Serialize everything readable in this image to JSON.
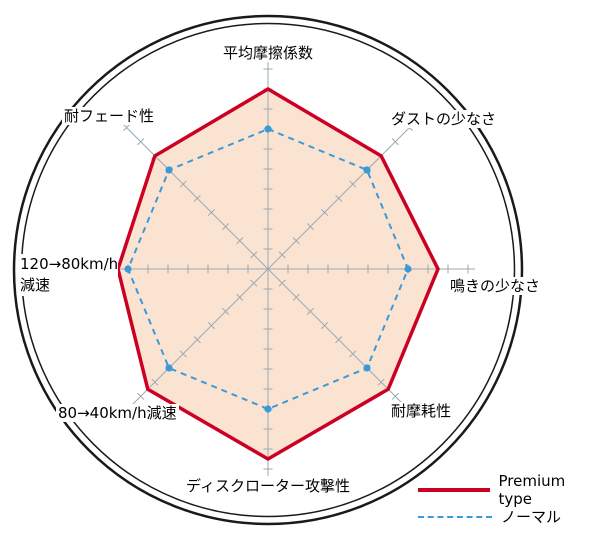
{
  "chart_data": {
    "type": "radar",
    "title": "",
    "axes": [
      {
        "label": "平均摩擦係数"
      },
      {
        "label": "ダストの少なさ"
      },
      {
        "label": "鳴きの少なさ"
      },
      {
        "label": "耐摩耗性"
      },
      {
        "label": "ディスクローター攻撃性"
      },
      {
        "label": "80→40km/h減速"
      },
      {
        "label": "120→80km/h減速"
      },
      {
        "label": "耐フェード性"
      }
    ],
    "scale": {
      "min": 0,
      "max": 10,
      "ticks_per_axis": 10
    },
    "series": [
      {
        "name": "Premium type",
        "style": "solid",
        "color": "#cc0022",
        "values": [
          9,
          8,
          8.5,
          8.5,
          9.5,
          8.5,
          7.5,
          8
        ]
      },
      {
        "name": "ノーマル",
        "style": "dashed",
        "color": "#3a9ad9",
        "values": [
          7,
          7,
          7,
          7,
          7,
          7,
          7,
          7
        ]
      }
    ],
    "legend_position": "bottom-right",
    "grid": "radial-ticks"
  },
  "colors": {
    "premium": "#cc0022",
    "normal": "#3a9ad9",
    "fill": "#fbe3d2",
    "axis": "#9aaab4",
    "ring": "#1a1a1a"
  }
}
